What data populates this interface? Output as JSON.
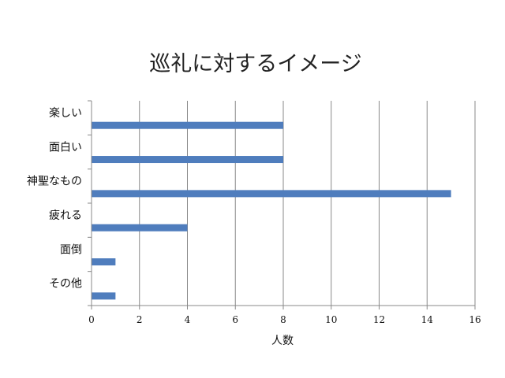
{
  "chart_data": {
    "type": "bar",
    "orientation": "horizontal",
    "title": "巡礼に対するイメージ",
    "xlabel": "人数",
    "ylabel": "",
    "categories": [
      "楽しい",
      "面白い",
      "神聖なもの",
      "疲れる",
      "面倒",
      "その他"
    ],
    "values": [
      8,
      8,
      15,
      4,
      1,
      1
    ],
    "xlim": [
      0,
      16
    ],
    "xticks": [
      0,
      2,
      4,
      6,
      8,
      10,
      12,
      14,
      16
    ],
    "grid": true,
    "legend": "none",
    "bar_color": "#4f7dbd"
  }
}
